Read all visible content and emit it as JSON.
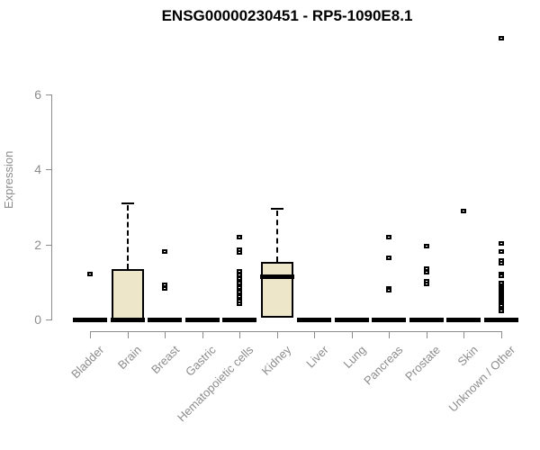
{
  "chart_data": {
    "type": "boxplot",
    "title": "ENSG00000230451 - RP5-1090E8.1",
    "ylabel": "Expression",
    "xlabel": "",
    "yticks": [
      0,
      2,
      4,
      6
    ],
    "ylim": [
      0,
      7.8
    ],
    "grid": false,
    "legend": "none",
    "colors": {
      "box_fill": "#ede6c8",
      "box_border": "#000000",
      "median": "#000000",
      "axis": "#8c8c8c",
      "title": "#000000"
    },
    "categories": [
      "Bladder",
      "Brain",
      "Breast",
      "Gastric",
      "Hematopoietic cells",
      "Kidney",
      "Liver",
      "Lung",
      "Pancreas",
      "Prostate",
      "Skin",
      "Unknown / Other"
    ],
    "boxes": [
      {
        "category": "Bladder",
        "q1": 0,
        "median": 0,
        "q3": 0,
        "whisker_low": 0,
        "whisker_high": 0,
        "outliers": [
          1.2
        ]
      },
      {
        "category": "Brain",
        "q1": 0,
        "median": 0,
        "q3": 1.34,
        "whisker_low": 0,
        "whisker_high": 3.1,
        "outliers": []
      },
      {
        "category": "Breast",
        "q1": 0,
        "median": 0,
        "q3": 0,
        "whisker_low": 0,
        "whisker_high": 0,
        "outliers": [
          1.82,
          0.92,
          0.82
        ]
      },
      {
        "category": "Gastric",
        "q1": 0,
        "median": 0,
        "q3": 0,
        "whisker_low": 0,
        "whisker_high": 0,
        "outliers": []
      },
      {
        "category": "Hematopoietic cells",
        "q1": 0,
        "median": 0,
        "q3": 0,
        "whisker_low": 0,
        "whisker_high": 0,
        "outliers": [
          2.2,
          1.86,
          1.78,
          1.28,
          1.18,
          1.08,
          0.96,
          0.9,
          0.84,
          0.78,
          0.72,
          0.66,
          0.6,
          0.54,
          0.48,
          0.43
        ]
      },
      {
        "category": "Kidney",
        "q1": 0.04,
        "median": 1.13,
        "q3": 1.54,
        "whisker_low": 0.04,
        "whisker_high": 2.95,
        "outliers": []
      },
      {
        "category": "Liver",
        "q1": 0,
        "median": 0,
        "q3": 0,
        "whisker_low": 0,
        "whisker_high": 0,
        "outliers": []
      },
      {
        "category": "Lung",
        "q1": 0,
        "median": 0,
        "q3": 0,
        "whisker_low": 0,
        "whisker_high": 0,
        "outliers": []
      },
      {
        "category": "Pancreas",
        "q1": 0,
        "median": 0,
        "q3": 0,
        "whisker_low": 0,
        "whisker_high": 0,
        "outliers": [
          2.2,
          1.64,
          0.83,
          0.78
        ]
      },
      {
        "category": "Prostate",
        "q1": 0,
        "median": 0,
        "q3": 0,
        "whisker_low": 0,
        "whisker_high": 0,
        "outliers": [
          1.95,
          1.36,
          1.27,
          1.02,
          0.94
        ]
      },
      {
        "category": "Skin",
        "q1": 0,
        "median": 0,
        "q3": 0,
        "whisker_low": 0,
        "whisker_high": 0,
        "outliers": [
          2.9
        ]
      },
      {
        "category": "Unknown / Other",
        "q1": 0,
        "median": 0,
        "q3": 0,
        "whisker_low": 0,
        "whisker_high": 0,
        "outliers": [
          7.5,
          2.03,
          1.82,
          1.56,
          1.5,
          1.22,
          1.16,
          0.98,
          0.86,
          0.81,
          0.76,
          0.71,
          0.66,
          0.61,
          0.56,
          0.51,
          0.46,
          0.41,
          0.36,
          0.31,
          0.26,
          0.22
        ]
      }
    ]
  }
}
